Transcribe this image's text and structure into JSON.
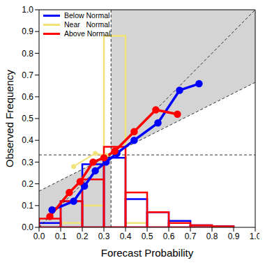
{
  "chart_data": {
    "type": "line",
    "x_label": "Forecast Probability",
    "y_label": "Observed Frequency",
    "xlim": [
      0,
      1
    ],
    "ylim": [
      0,
      1
    ],
    "xticks": [
      {
        "value": 0,
        "label": "0.0"
      },
      {
        "value": 0.1,
        "label": "0.1"
      },
      {
        "value": 0.2,
        "label": "0.2"
      },
      {
        "value": 0.3,
        "label": "0.3"
      },
      {
        "value": 0.4,
        "label": "0.4"
      },
      {
        "value": 0.5,
        "label": "0.5"
      },
      {
        "value": 0.6,
        "label": "0.6"
      },
      {
        "value": 0.7,
        "label": "0.7"
      },
      {
        "value": 0.8,
        "label": "0.8"
      },
      {
        "value": 0.9,
        "label": "0.9"
      },
      {
        "value": 1,
        "label": "1.0"
      }
    ],
    "yticks": [
      {
        "value": 0,
        "label": "0.0"
      },
      {
        "value": 0.1,
        "label": "0.1"
      },
      {
        "value": 0.2,
        "label": "0.2"
      },
      {
        "value": 0.3,
        "label": "0.3"
      },
      {
        "value": 0.4,
        "label": "0.4"
      },
      {
        "value": 0.5,
        "label": "0.5"
      },
      {
        "value": 0.6,
        "label": "0.6"
      },
      {
        "value": 0.7,
        "label": "0.7"
      },
      {
        "value": 0.8,
        "label": "0.8"
      },
      {
        "value": 0.9,
        "label": "0.9"
      },
      {
        "value": 1,
        "label": "1.0"
      }
    ],
    "legend": "upper left",
    "climatology": 0.333,
    "bins": [
      0,
      0.1,
      0.2,
      0.3,
      0.4,
      0.5,
      0.6,
      0.7,
      0.8,
      0.9,
      1
    ],
    "series": [
      {
        "name": "Near   Normal",
        "color": "#f2e27a",
        "marker": "circle",
        "x": [
          0.16,
          0.26,
          0.31
        ],
        "values": [
          0.28,
          0.34,
          0.33
        ],
        "histogram": [
          0.02,
          0.02,
          0.1,
          0.88,
          0.02,
          0,
          0,
          0,
          0,
          0
        ]
      },
      {
        "name": "Below Normal",
        "color": "#0000ff",
        "marker": "circle",
        "x": [
          0.06,
          0.16,
          0.21,
          0.26,
          0.31,
          0.36,
          0.44,
          0.55,
          0.65,
          0.74
        ],
        "values": [
          0.08,
          0.12,
          0.19,
          0.26,
          0.3,
          0.34,
          0.4,
          0.48,
          0.63,
          0.66
        ],
        "histogram": [
          0.02,
          0.12,
          0.29,
          0.32,
          0.13,
          0.07,
          0.03,
          0.01,
          0.005,
          0
        ]
      },
      {
        "name": "Above Normal",
        "color": "#ff0000",
        "marker": "circle",
        "x": [
          0.05,
          0.14,
          0.19,
          0.25,
          0.3,
          0.35,
          0.44,
          0.54,
          0.64
        ],
        "values": [
          0.05,
          0.16,
          0.21,
          0.3,
          0.32,
          0.35,
          0.44,
          0.54,
          0.52
        ],
        "histogram": [
          0.04,
          0.12,
          0.22,
          0.37,
          0.16,
          0.07,
          0.02,
          0.01,
          0.005,
          0
        ]
      }
    ]
  }
}
